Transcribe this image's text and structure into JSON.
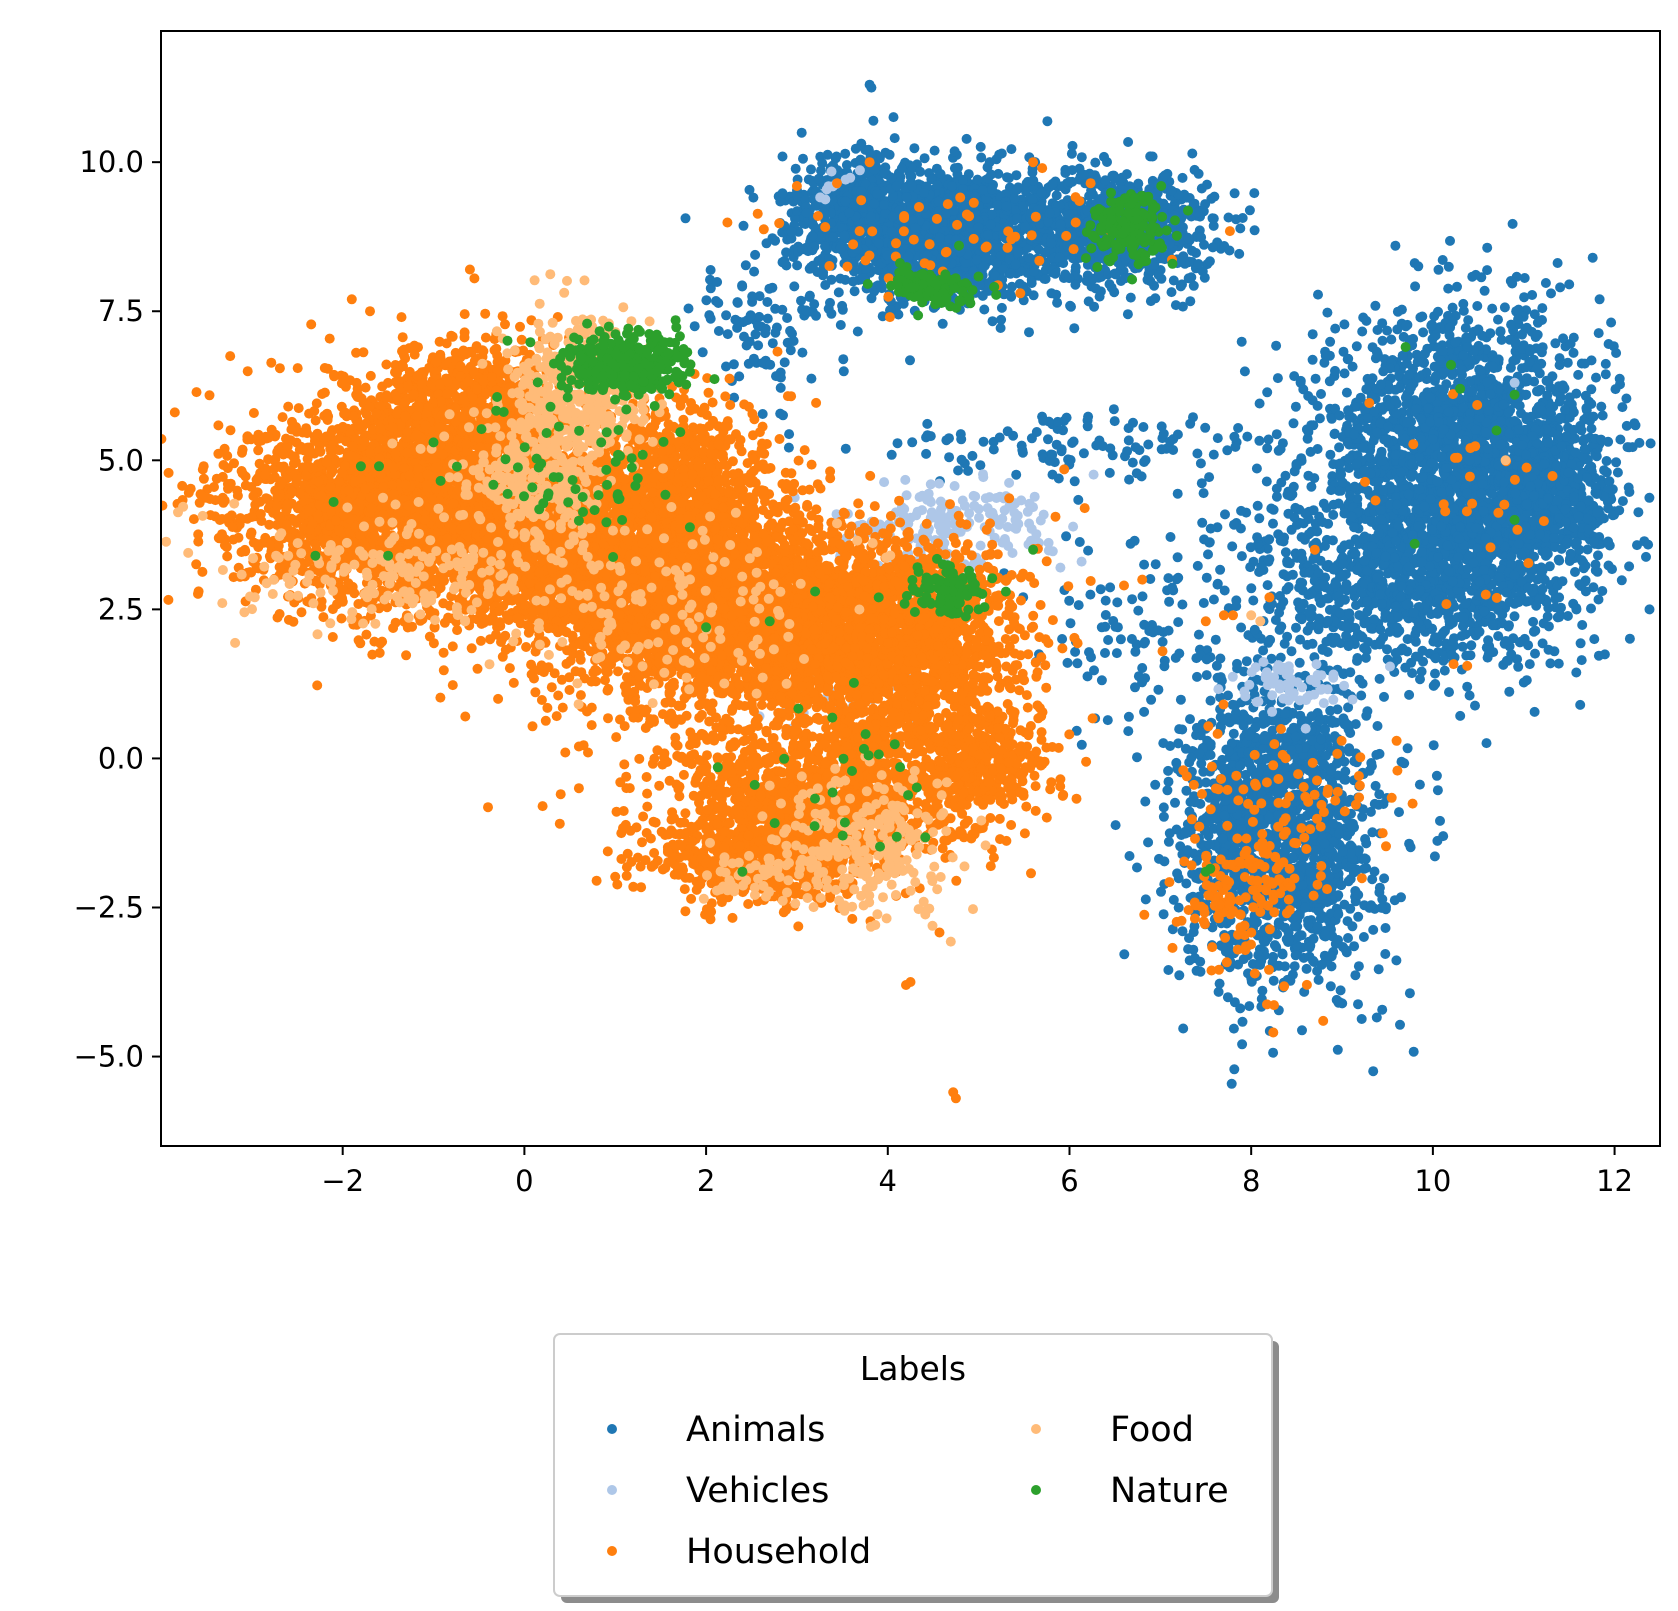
{
  "chart_data": {
    "type": "scatter",
    "title": "",
    "xlabel": "",
    "ylabel": "",
    "xlim": [
      -4.0,
      12.5
    ],
    "ylim": [
      -6.5,
      12.2
    ],
    "xticks": [
      -2,
      0,
      2,
      4,
      6,
      8,
      10,
      12
    ],
    "xtick_labels": [
      "−2",
      "0",
      "2",
      "4",
      "6",
      "8",
      "10",
      "12"
    ],
    "yticks": [
      -5.0,
      -2.5,
      0.0,
      2.5,
      5.0,
      7.5,
      10.0
    ],
    "ytick_labels": [
      "−5.0",
      "−2.5",
      "0.0",
      "2.5",
      "5.0",
      "7.5",
      "10.0"
    ],
    "grid": false,
    "legend": {
      "title": "Labels",
      "placement": "bottom-center",
      "columns": 2
    },
    "series": [
      {
        "name": "Animals",
        "color": "#1f77b4",
        "clusters": [
          {
            "cx": 4.6,
            "cy": 8.8,
            "sx": 0.7,
            "sy": 0.55,
            "n": 1500
          },
          {
            "cx": 6.6,
            "cy": 8.9,
            "sx": 0.5,
            "sy": 0.5,
            "n": 700
          },
          {
            "cx": 3.6,
            "cy": 9.3,
            "sx": 0.35,
            "sy": 0.5,
            "n": 300
          },
          {
            "cx": 10.3,
            "cy": 5.0,
            "sx": 0.8,
            "sy": 1.2,
            "n": 2200
          },
          {
            "cx": 9.7,
            "cy": 3.0,
            "sx": 0.9,
            "sy": 0.8,
            "n": 900
          },
          {
            "cx": 11.2,
            "cy": 4.3,
            "sx": 0.4,
            "sy": 0.6,
            "n": 400
          },
          {
            "cx": 8.3,
            "cy": -1.2,
            "sx": 0.55,
            "sy": 1.3,
            "n": 1600
          },
          {
            "cx": 6.2,
            "cy": 5.2,
            "sx": 1.2,
            "sy": 0.3,
            "n": 120
          },
          {
            "cx": 6.6,
            "cy": 2.2,
            "sx": 0.5,
            "sy": 0.8,
            "n": 80
          },
          {
            "cx": 2.6,
            "cy": 7.2,
            "sx": 0.4,
            "sy": 0.6,
            "n": 90
          }
        ],
        "points": [
          [
            3.8,
            11.3
          ],
          [
            3.82,
            11.25
          ],
          [
            11.4,
            7.9
          ],
          [
            11.5,
            7.95
          ],
          [
            11.3,
            7.8
          ],
          [
            11.6,
            4.7
          ],
          [
            11.7,
            4.7
          ]
        ]
      },
      {
        "name": "Vehicles",
        "color": "#aec7e8",
        "clusters": [
          {
            "cx": 4.6,
            "cy": 3.9,
            "sx": 0.6,
            "sy": 0.35,
            "n": 180
          },
          {
            "cx": 3.4,
            "cy": 1.2,
            "sx": 0.5,
            "sy": 0.4,
            "n": 40
          },
          {
            "cx": 8.4,
            "cy": 1.2,
            "sx": 0.35,
            "sy": 0.2,
            "n": 60
          },
          {
            "cx": 3.4,
            "cy": 9.6,
            "sx": 0.15,
            "sy": 0.15,
            "n": 10
          }
        ],
        "points": [
          [
            5.3,
            4.4
          ],
          [
            5.1,
            4.2
          ],
          [
            8.6,
            0.5
          ],
          [
            10.9,
            6.3
          ],
          [
            5.9,
            3.2
          ]
        ]
      },
      {
        "name": "Household",
        "color": "#ff7f0e",
        "clusters": [
          {
            "cx": -1.3,
            "cy": 4.2,
            "sx": 0.9,
            "sy": 0.8,
            "n": 2800
          },
          {
            "cx": -0.6,
            "cy": 5.8,
            "sx": 0.6,
            "sy": 0.6,
            "n": 900
          },
          {
            "cx": 1.0,
            "cy": 3.3,
            "sx": 0.9,
            "sy": 0.9,
            "n": 2500
          },
          {
            "cx": 2.8,
            "cy": 2.3,
            "sx": 1.0,
            "sy": 0.8,
            "n": 2500
          },
          {
            "cx": 4.1,
            "cy": 1.8,
            "sx": 0.7,
            "sy": 0.9,
            "n": 1200
          },
          {
            "cx": 3.3,
            "cy": -0.6,
            "sx": 0.9,
            "sy": 0.7,
            "n": 1200
          },
          {
            "cx": 2.6,
            "cy": -1.6,
            "sx": 0.6,
            "sy": 0.4,
            "n": 600
          },
          {
            "cx": 5.0,
            "cy": 0.0,
            "sx": 0.4,
            "sy": 0.4,
            "n": 300
          },
          {
            "cx": 1.8,
            "cy": 4.8,
            "sx": 0.5,
            "sy": 0.6,
            "n": 500
          },
          {
            "cx": 7.9,
            "cy": -2.1,
            "sx": 0.4,
            "sy": 0.8,
            "n": 160
          },
          {
            "cx": 4.8,
            "cy": 8.6,
            "sx": 1.1,
            "sy": 0.6,
            "n": 60
          },
          {
            "cx": 8.6,
            "cy": -0.8,
            "sx": 0.5,
            "sy": 0.7,
            "n": 60
          },
          {
            "cx": 10.3,
            "cy": 4.5,
            "sx": 0.5,
            "sy": 1.0,
            "n": 30
          }
        ],
        "points": [
          [
            0.2,
            -0.8
          ],
          [
            0.4,
            -0.6
          ],
          [
            0.6,
            -0.5
          ],
          [
            0.45,
            0.1
          ],
          [
            0.6,
            0.2
          ],
          [
            0.7,
            0.1
          ],
          [
            4.2,
            -3.8
          ],
          [
            4.25,
            -3.75
          ],
          [
            4.72,
            -5.6
          ],
          [
            4.75,
            -5.7
          ],
          [
            -1.9,
            7.7
          ],
          [
            -1.7,
            7.5
          ],
          [
            -0.6,
            8.2
          ],
          [
            -0.55,
            8.05
          ],
          [
            -2.6,
            5.9
          ],
          [
            3.8,
            10.0
          ],
          [
            3.0,
            9.6
          ],
          [
            5.6,
            10.0
          ],
          [
            5.7,
            9.9
          ],
          [
            1.1,
            -0.1
          ],
          [
            6.8,
            3.0
          ],
          [
            6.6,
            2.9
          ],
          [
            7.5,
            2.3
          ],
          [
            7.7,
            2.4
          ],
          [
            7.8,
            2.4
          ],
          [
            8.7,
            3.5
          ],
          [
            8.2,
            2.7
          ],
          [
            8.8,
            -0.9
          ],
          [
            5.8,
            -0.4
          ],
          [
            5.9,
            -0.35
          ]
        ]
      },
      {
        "name": "Food",
        "color": "#ffbb78",
        "clusters": [
          {
            "cx": 0.6,
            "cy": 6.2,
            "sx": 0.35,
            "sy": 0.6,
            "n": 400
          },
          {
            "cx": 0.1,
            "cy": 4.6,
            "sx": 0.4,
            "sy": 0.6,
            "n": 250
          },
          {
            "cx": 3.8,
            "cy": -1.4,
            "sx": 0.5,
            "sy": 0.6,
            "n": 250
          },
          {
            "cx": -1.4,
            "cy": 3.2,
            "sx": 0.9,
            "sy": 0.5,
            "n": 200
          },
          {
            "cx": 2.5,
            "cy": -2.0,
            "sx": 0.25,
            "sy": 0.2,
            "n": 50
          },
          {
            "cx": 1.6,
            "cy": 2.5,
            "sx": 1.0,
            "sy": 0.8,
            "n": 150
          }
        ],
        "points": [
          [
            8.0,
            2.4
          ],
          [
            10.8,
            5.0
          ],
          [
            8.1,
            2.3
          ],
          [
            -2.6,
            3.4
          ]
        ]
      },
      {
        "name": "Nature",
        "color": "#2ca02c",
        "clusters": [
          {
            "cx": 1.1,
            "cy": 6.6,
            "sx": 0.35,
            "sy": 0.25,
            "n": 400
          },
          {
            "cx": 6.65,
            "cy": 8.9,
            "sx": 0.2,
            "sy": 0.25,
            "n": 180
          },
          {
            "cx": 4.5,
            "cy": 7.9,
            "sx": 0.25,
            "sy": 0.2,
            "n": 100
          },
          {
            "cx": 4.7,
            "cy": 2.8,
            "sx": 0.2,
            "sy": 0.2,
            "n": 90
          },
          {
            "cx": 0.6,
            "cy": 4.8,
            "sx": 0.6,
            "sy": 0.7,
            "n": 60
          },
          {
            "cx": 3.6,
            "cy": -0.5,
            "sx": 0.5,
            "sy": 0.7,
            "n": 25
          }
        ],
        "points": [
          [
            -2.1,
            4.3
          ],
          [
            -2.3,
            3.4
          ],
          [
            -1.8,
            4.9
          ],
          [
            -1.6,
            4.9
          ],
          [
            -1.5,
            3.4
          ],
          [
            -1.0,
            5.3
          ],
          [
            2.4,
            -1.9
          ],
          [
            4.4,
            2.6
          ],
          [
            3.9,
            2.7
          ],
          [
            9.7,
            6.9
          ],
          [
            10.2,
            6.6
          ],
          [
            10.3,
            6.2
          ],
          [
            10.9,
            6.1
          ],
          [
            10.7,
            5.5
          ],
          [
            9.8,
            3.6
          ],
          [
            10.9,
            4.0
          ],
          [
            7.5,
            -1.9
          ],
          [
            7.55,
            -1.85
          ],
          [
            2.7,
            2.3
          ],
          [
            3.2,
            2.8
          ],
          [
            5.6,
            3.5
          ],
          [
            5.0,
            2.5
          ],
          [
            2.0,
            2.2
          ]
        ]
      }
    ]
  }
}
